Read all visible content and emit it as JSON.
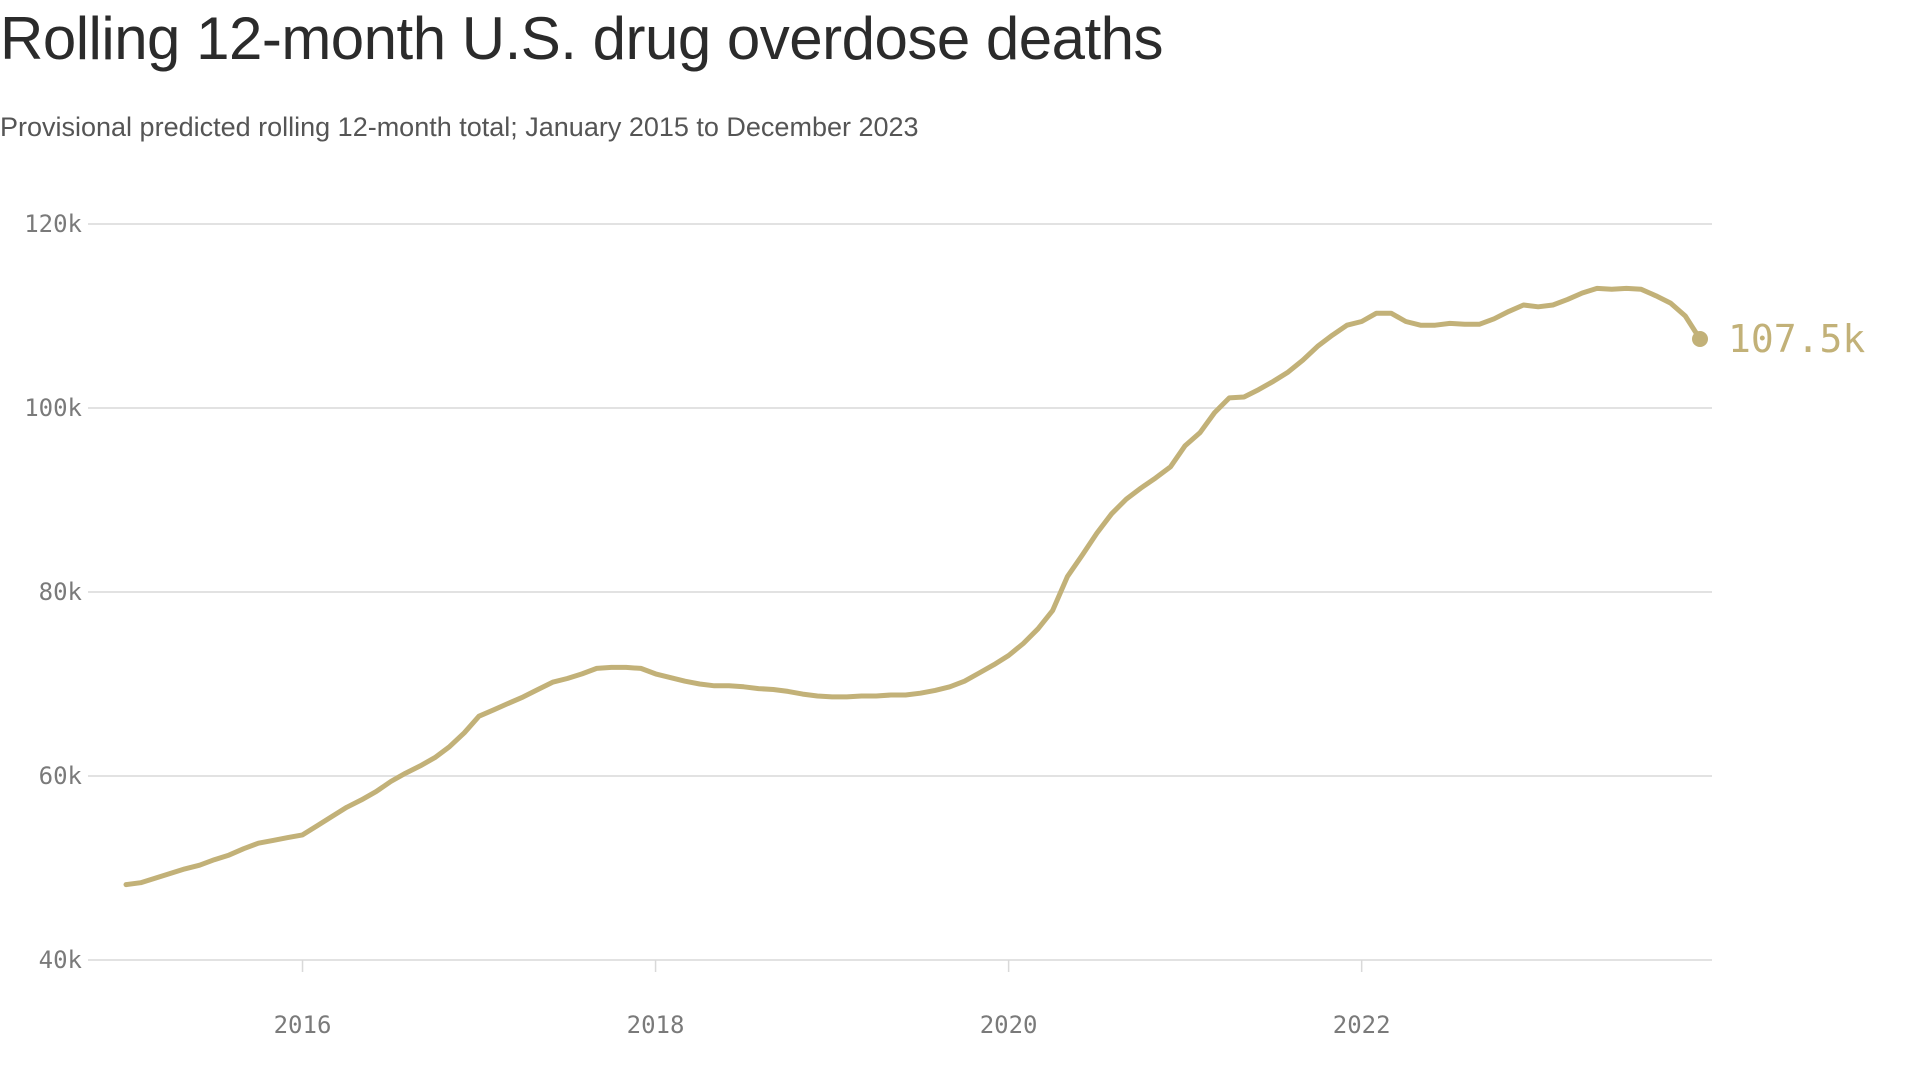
{
  "title": "Rolling 12-month U.S. drug overdose deaths",
  "subtitle": "Provisional predicted rolling 12-month total; January 2015 to December 2023",
  "colors": {
    "line": "#c2b178",
    "grid": "#d9d9d9",
    "axis_text": "#7a7a7a"
  },
  "chart_data": {
    "type": "line",
    "xlabel": "",
    "ylabel": "",
    "xlim": [
      "2015-01",
      "2023-12"
    ],
    "ylim": [
      40000,
      120000
    ],
    "y_ticks": [
      40000,
      60000,
      80000,
      100000,
      120000
    ],
    "y_tick_labels": [
      "40k",
      "60k",
      "80k",
      "100k",
      "120k"
    ],
    "x_ticks": [
      "2016-01",
      "2018-01",
      "2020-01",
      "2022-01"
    ],
    "x_tick_labels": [
      "2016",
      "2018",
      "2020",
      "2022"
    ],
    "grid": "horizontal",
    "end_label": "107.5k",
    "series": [
      {
        "x": [
          "2015-01",
          "2015-02",
          "2015-03",
          "2015-04",
          "2015-05",
          "2015-06",
          "2015-07",
          "2015-08",
          "2015-09",
          "2015-10",
          "2015-11",
          "2015-12",
          "2016-01",
          "2016-02",
          "2016-03",
          "2016-04",
          "2016-05",
          "2016-06",
          "2016-07",
          "2016-08",
          "2016-09",
          "2016-10",
          "2016-11",
          "2016-12",
          "2017-01",
          "2017-02",
          "2017-03",
          "2017-04",
          "2017-05",
          "2017-06",
          "2017-07",
          "2017-08",
          "2017-09",
          "2017-10",
          "2017-11",
          "2017-12",
          "2018-01",
          "2018-02",
          "2018-03",
          "2018-04",
          "2018-05",
          "2018-06",
          "2018-07",
          "2018-08",
          "2018-09",
          "2018-10",
          "2018-11",
          "2018-12",
          "2019-01",
          "2019-02",
          "2019-03",
          "2019-04",
          "2019-05",
          "2019-06",
          "2019-07",
          "2019-08",
          "2019-09",
          "2019-10",
          "2019-11",
          "2019-12",
          "2020-01",
          "2020-02",
          "2020-03",
          "2020-04",
          "2020-05",
          "2020-06",
          "2020-07",
          "2020-08",
          "2020-09",
          "2020-10",
          "2020-11",
          "2020-12",
          "2021-01",
          "2021-02",
          "2021-03",
          "2021-04",
          "2021-05",
          "2021-06",
          "2021-07",
          "2021-08",
          "2021-09",
          "2021-10",
          "2021-11",
          "2021-12",
          "2022-01",
          "2022-02",
          "2022-03",
          "2022-04",
          "2022-05",
          "2022-06",
          "2022-07",
          "2022-08",
          "2022-09",
          "2022-10",
          "2022-11",
          "2022-12",
          "2023-01",
          "2023-02",
          "2023-03",
          "2023-04",
          "2023-05",
          "2023-06",
          "2023-07",
          "2023-08",
          "2023-09",
          "2023-10",
          "2023-11",
          "2023-12"
        ],
        "y": [
          48200,
          48400,
          48900,
          49400,
          49900,
          50300,
          50900,
          51400,
          52100,
          52700,
          53000,
          53300,
          53600,
          54600,
          55600,
          56600,
          57400,
          58300,
          59400,
          60300,
          61100,
          62000,
          63200,
          64700,
          66500,
          67200,
          67900,
          68600,
          69400,
          70200,
          70600,
          71100,
          71700,
          71800,
          71800,
          71700,
          71100,
          70700,
          70300,
          70000,
          69800,
          69800,
          69700,
          69500,
          69400,
          69200,
          68900,
          68700,
          68600,
          68600,
          68700,
          68700,
          68800,
          68800,
          69000,
          69300,
          69700,
          70300,
          71200,
          72100,
          73100,
          74400,
          76000,
          78000,
          81700,
          84000,
          86400,
          88500,
          90100,
          91300,
          92400,
          93600,
          95900,
          97300,
          99500,
          101100,
          101200,
          102000,
          102900,
          103900,
          105200,
          106700,
          107900,
          109000,
          109400,
          110300,
          110300,
          109400,
          109000,
          109000,
          109200,
          109100,
          109100,
          109700,
          110500,
          111200,
          111000,
          111200,
          111800,
          112500,
          113000,
          112900,
          113000,
          112900,
          112200,
          111400,
          110000,
          107500
        ]
      }
    ]
  }
}
